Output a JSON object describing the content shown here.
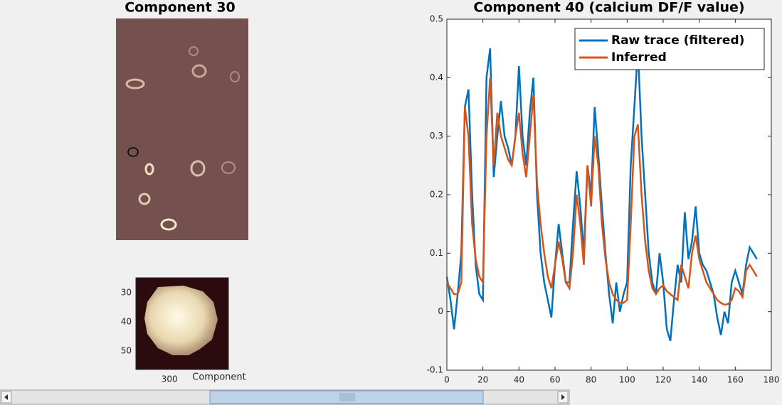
{
  "panels": {
    "image": {
      "title": "Component 30"
    },
    "zoom": {
      "xlim": [
        288.5,
        320.2
      ],
      "ylim": [
        24.9,
        56.3
      ],
      "xticks": [
        300
      ],
      "yticks": [
        30,
        40,
        50
      ],
      "xlabel": "Component"
    }
  },
  "chart_data": {
    "type": "line",
    "title": "Component 40 (calcium DF/F value)",
    "x": [
      0,
      2,
      4,
      6,
      8,
      10,
      12,
      14,
      16,
      18,
      20,
      22,
      24,
      26,
      28,
      30,
      32,
      34,
      36,
      38,
      40,
      42,
      44,
      46,
      48,
      50,
      52,
      54,
      56,
      58,
      60,
      62,
      64,
      66,
      68,
      70,
      72,
      74,
      76,
      78,
      80,
      82,
      84,
      86,
      88,
      90,
      92,
      94,
      96,
      98,
      100,
      102,
      104,
      106,
      108,
      110,
      112,
      114,
      116,
      118,
      120,
      122,
      124,
      126,
      128,
      130,
      132,
      134,
      136,
      138,
      140,
      142,
      144,
      146,
      148,
      150,
      152,
      154,
      156,
      158,
      160,
      162,
      164,
      166,
      168,
      170,
      172
    ],
    "series": [
      {
        "name": "Raw trace (filtered)",
        "color": "#0072bd",
        "values": [
          0.06,
          0.02,
          -0.03,
          0.03,
          0.1,
          0.35,
          0.38,
          0.2,
          0.08,
          0.03,
          0.02,
          0.4,
          0.45,
          0.23,
          0.3,
          0.36,
          0.3,
          0.28,
          0.25,
          0.3,
          0.42,
          0.3,
          0.25,
          0.34,
          0.4,
          0.2,
          0.1,
          0.05,
          0.02,
          -0.01,
          0.08,
          0.15,
          0.1,
          0.05,
          0.05,
          0.15,
          0.24,
          0.18,
          0.1,
          0.25,
          0.2,
          0.35,
          0.27,
          0.18,
          0.1,
          0.03,
          -0.02,
          0.05,
          0.0,
          0.03,
          0.05,
          0.25,
          0.35,
          0.45,
          0.3,
          0.2,
          0.1,
          0.05,
          0.03,
          0.1,
          0.05,
          -0.03,
          -0.05,
          0.02,
          0.08,
          0.05,
          0.17,
          0.09,
          0.12,
          0.18,
          0.1,
          0.08,
          0.07,
          0.05,
          0.03,
          -0.01,
          -0.04,
          0.0,
          -0.02,
          0.05,
          0.07,
          0.05,
          0.03,
          0.08,
          0.11,
          0.1,
          0.09
        ]
      },
      {
        "name": "Inferred",
        "color": "#d95319",
        "values": [
          0.05,
          0.04,
          0.03,
          0.03,
          0.05,
          0.35,
          0.3,
          0.15,
          0.09,
          0.06,
          0.05,
          0.3,
          0.4,
          0.25,
          0.34,
          0.3,
          0.28,
          0.26,
          0.25,
          0.3,
          0.34,
          0.27,
          0.23,
          0.3,
          0.37,
          0.22,
          0.15,
          0.1,
          0.06,
          0.04,
          0.08,
          0.12,
          0.09,
          0.05,
          0.04,
          0.1,
          0.2,
          0.15,
          0.08,
          0.25,
          0.18,
          0.3,
          0.25,
          0.15,
          0.09,
          0.05,
          0.03,
          0.02,
          0.015,
          0.015,
          0.02,
          0.15,
          0.3,
          0.32,
          0.2,
          0.12,
          0.07,
          0.04,
          0.03,
          0.04,
          0.045,
          0.035,
          0.03,
          0.025,
          0.02,
          0.08,
          0.06,
          0.04,
          0.1,
          0.13,
          0.09,
          0.07,
          0.05,
          0.04,
          0.03,
          0.02,
          0.015,
          0.012,
          0.013,
          0.02,
          0.04,
          0.035,
          0.025,
          0.07,
          0.08,
          0.07,
          0.06
        ]
      }
    ],
    "xlim": [
      0,
      180
    ],
    "ylim": [
      -0.1,
      0.5
    ],
    "xticks": [
      0,
      20,
      40,
      60,
      80,
      100,
      120,
      140,
      160,
      180
    ],
    "yticks": [
      -0.1,
      0,
      0.1,
      0.2,
      0.3,
      0.4,
      0.5
    ],
    "legend": "northeast"
  }
}
